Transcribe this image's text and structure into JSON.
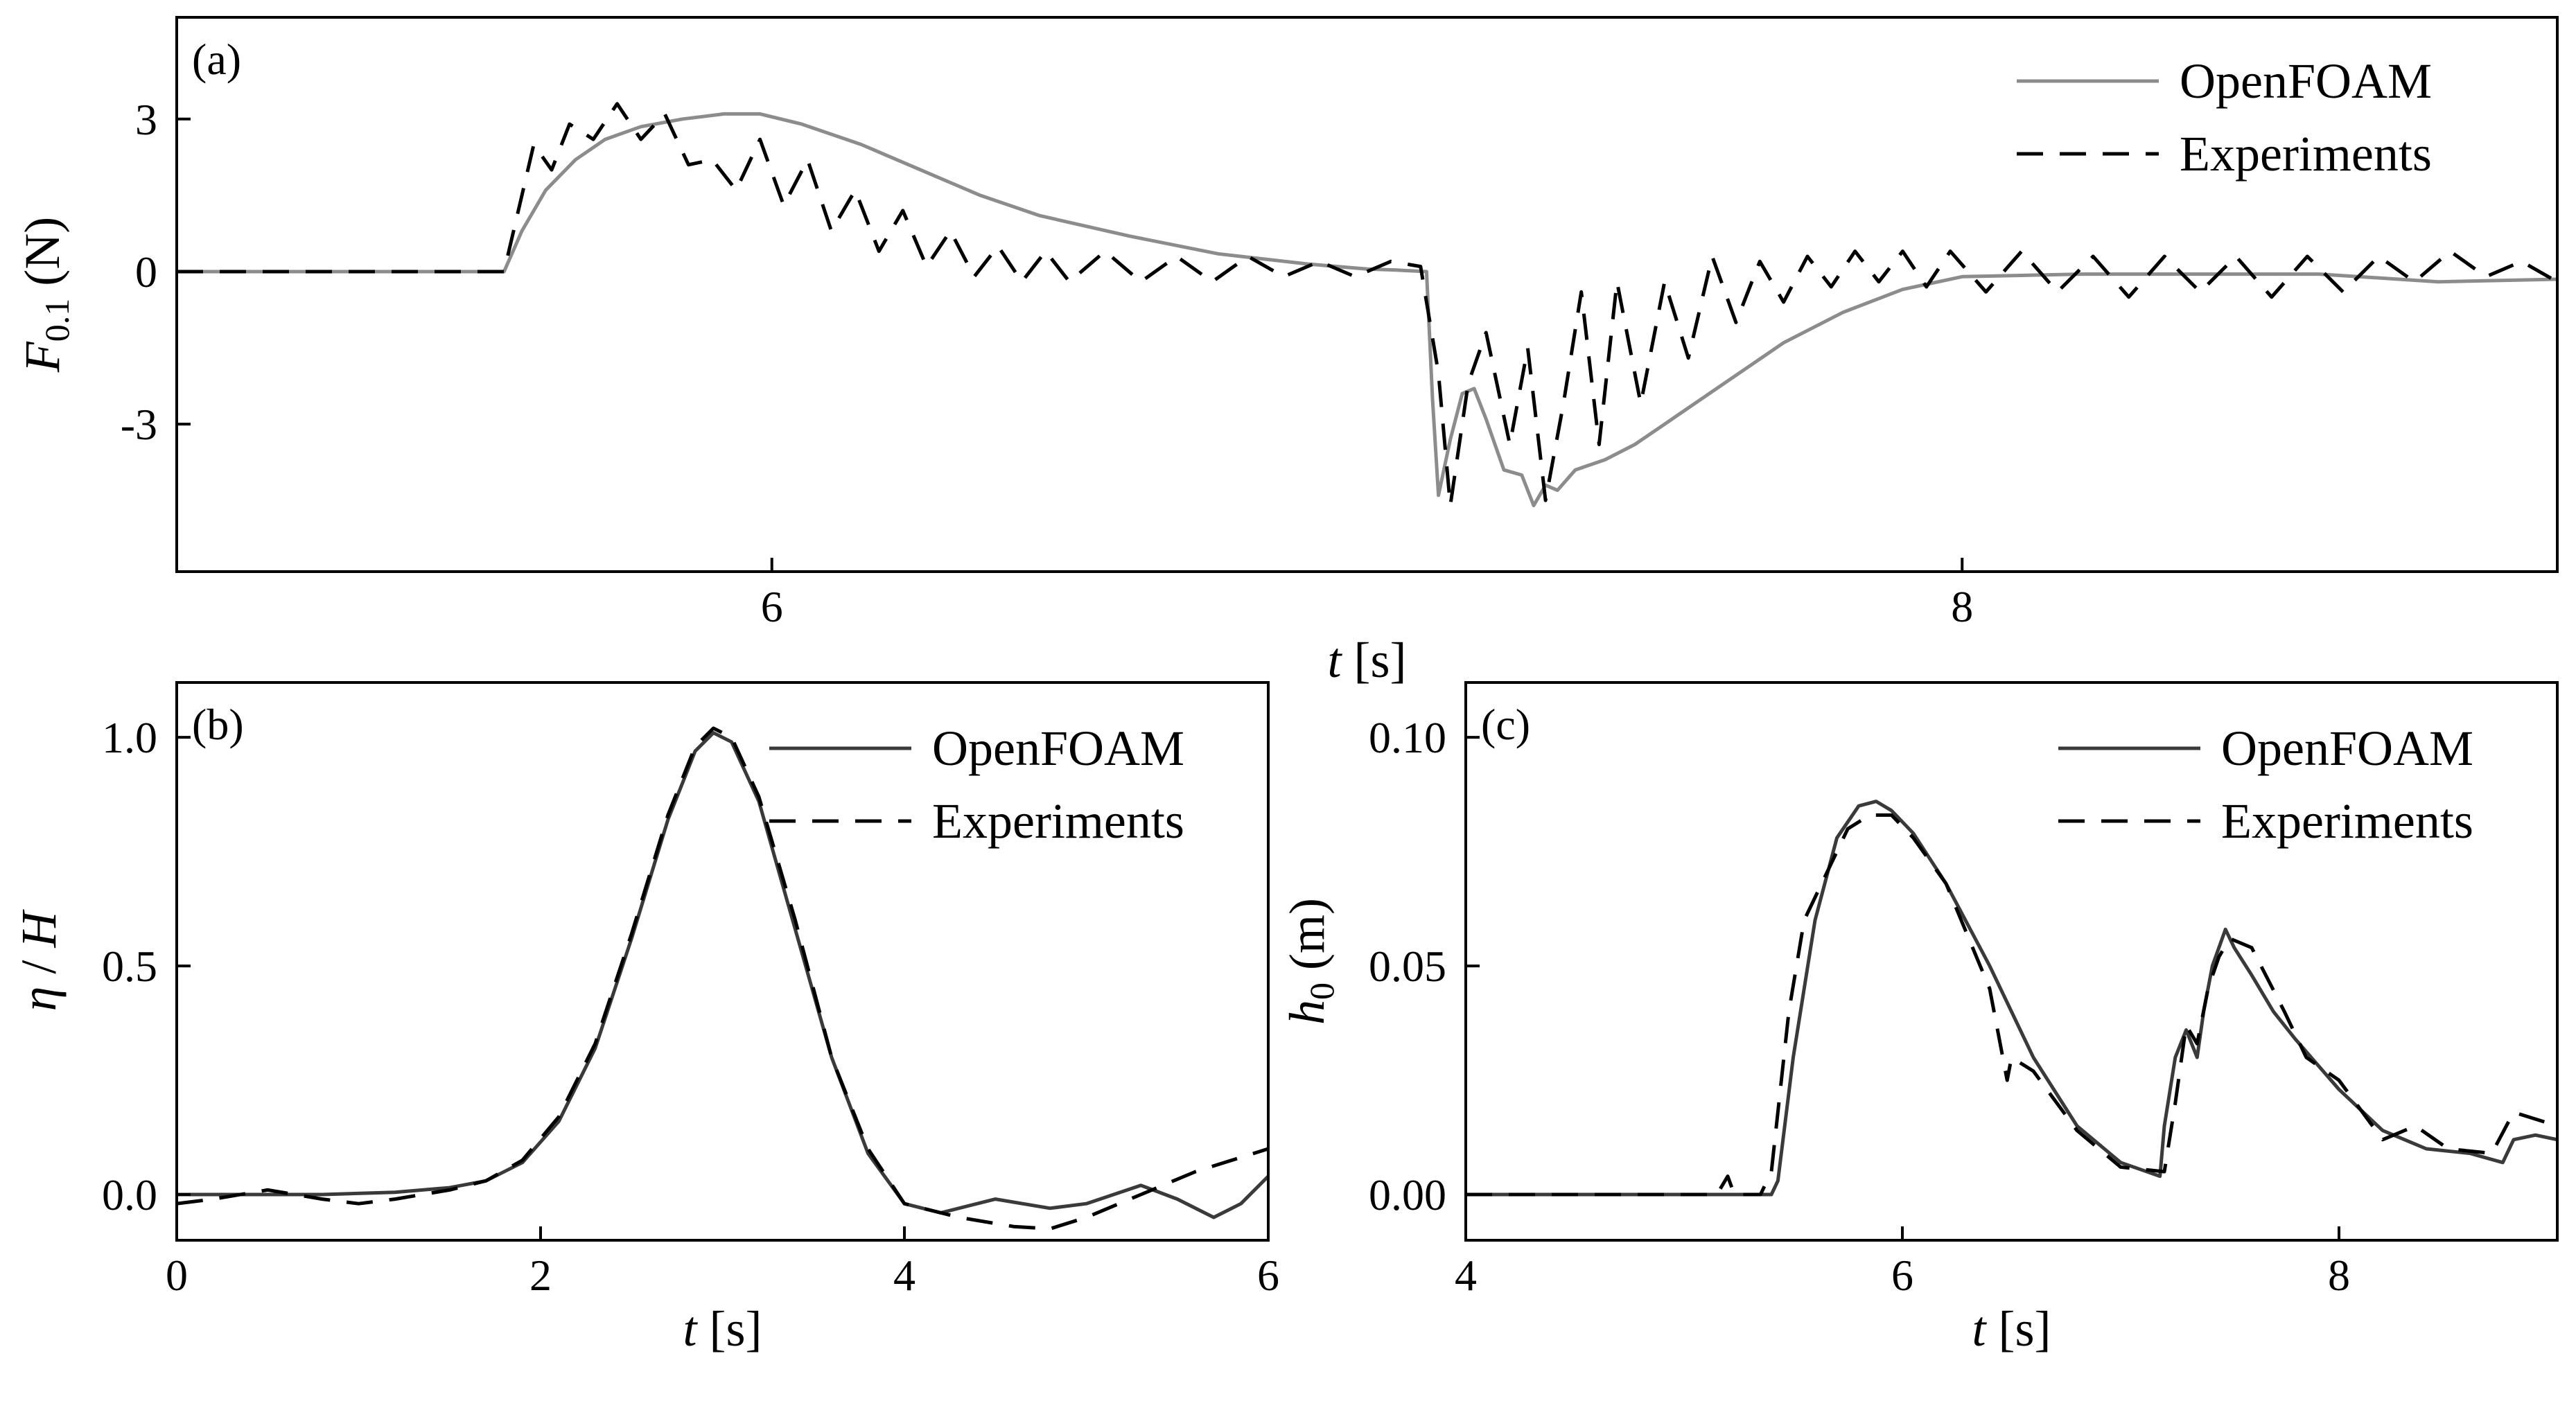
{
  "colors": {
    "openfoam_a": "#8c8c8c",
    "openfoam_bc": "#3a3a3a",
    "experiments": "#000000"
  },
  "chart_data": [
    {
      "panel": "(a)",
      "type": "line",
      "xlabel": {
        "var": "t",
        "unit": "[s]"
      },
      "ylabel": {
        "var": "F",
        "sub": "0.1",
        "unit": "(N)"
      },
      "xlim": [
        5.0,
        9.0
      ],
      "ylim": [
        -5.9,
        5.0
      ],
      "xticks": [
        6,
        8
      ],
      "xtick_labels": [
        "6",
        "8"
      ],
      "yticks": [
        3,
        0,
        -3
      ],
      "ytick_labels": [
        "3",
        "0",
        "-3"
      ],
      "legend": {
        "position": "top-right",
        "entries": [
          "OpenFOAM",
          "Experiments"
        ]
      },
      "series": [
        {
          "name": "OpenFOAM",
          "style": "solid",
          "color": "#8c8c8c",
          "x": [
            5.0,
            5.55,
            5.58,
            5.62,
            5.67,
            5.72,
            5.78,
            5.85,
            5.92,
            5.98,
            6.05,
            6.15,
            6.25,
            6.35,
            6.45,
            6.6,
            6.75,
            6.9,
            7.0,
            7.05,
            7.1,
            7.11,
            7.12,
            7.14,
            7.16,
            7.18,
            7.2,
            7.23,
            7.26,
            7.28,
            7.3,
            7.32,
            7.35,
            7.4,
            7.45,
            7.5,
            7.6,
            7.7,
            7.8,
            7.9,
            8.0,
            8.2,
            8.4,
            8.6,
            8.8,
            9.0
          ],
          "y": [
            0,
            0,
            0.8,
            1.6,
            2.2,
            2.6,
            2.85,
            3.0,
            3.1,
            3.1,
            2.9,
            2.5,
            2.0,
            1.5,
            1.1,
            0.7,
            0.35,
            0.15,
            0.05,
            0.03,
            0,
            -2.5,
            -4.4,
            -3.3,
            -2.4,
            -2.3,
            -2.9,
            -3.9,
            -4.0,
            -4.6,
            -4.2,
            -4.3,
            -3.9,
            -3.7,
            -3.4,
            -3.0,
            -2.2,
            -1.4,
            -0.8,
            -0.35,
            -0.1,
            -0.05,
            -0.05,
            -0.05,
            -0.2,
            -0.15
          ]
        },
        {
          "name": "Experiments",
          "style": "dashed",
          "color": "#000000",
          "x": [
            5.0,
            5.55,
            5.58,
            5.6,
            5.63,
            5.66,
            5.7,
            5.74,
            5.78,
            5.82,
            5.86,
            5.9,
            5.94,
            5.98,
            6.02,
            6.06,
            6.1,
            6.14,
            6.18,
            6.22,
            6.26,
            6.3,
            6.34,
            6.38,
            6.42,
            6.46,
            6.5,
            6.56,
            6.62,
            6.68,
            6.74,
            6.8,
            6.86,
            6.92,
            6.98,
            7.04,
            7.09,
            7.12,
            7.14,
            7.17,
            7.2,
            7.24,
            7.27,
            7.3,
            7.33,
            7.36,
            7.39,
            7.42,
            7.46,
            7.5,
            7.54,
            7.58,
            7.62,
            7.66,
            7.7,
            7.74,
            7.78,
            7.82,
            7.86,
            7.9,
            7.94,
            7.98,
            8.04,
            8.1,
            8.16,
            8.22,
            8.28,
            8.34,
            8.4,
            8.46,
            8.52,
            8.58,
            8.64,
            8.7,
            8.76,
            8.82,
            8.88,
            8.94,
            9.0
          ],
          "y": [
            0,
            0,
            1.5,
            2.5,
            2.0,
            2.9,
            2.6,
            3.3,
            2.6,
            3.1,
            2.1,
            2.2,
            1.6,
            2.6,
            1.3,
            2.2,
            0.8,
            1.6,
            0.4,
            1.2,
            0.1,
            0.8,
            -0.1,
            0.5,
            -0.2,
            0.4,
            -0.2,
            0.4,
            -0.2,
            0.3,
            -0.2,
            0.3,
            -0.1,
            0.2,
            -0.1,
            0.2,
            0.1,
            -2.0,
            -4.6,
            -2.2,
            -1.2,
            -3.4,
            -1.5,
            -4.5,
            -2.6,
            -0.4,
            -3.4,
            -0.2,
            -2.6,
            -0.2,
            -1.7,
            0.3,
            -1.0,
            0.2,
            -0.6,
            0.3,
            -0.3,
            0.4,
            -0.2,
            0.4,
            -0.3,
            0.4,
            -0.4,
            0.4,
            -0.4,
            0.3,
            -0.5,
            0.3,
            -0.4,
            0.3,
            -0.5,
            0.3,
            -0.4,
            0.3,
            -0.2,
            0.4,
            -0.1,
            0.2,
            -0.2
          ]
        }
      ]
    },
    {
      "panel": "(b)",
      "type": "line",
      "xlabel": {
        "var": "t",
        "unit": "[s]"
      },
      "ylabel": {
        "var": "η",
        "sep": " / ",
        "var2": "H"
      },
      "xlim": [
        0,
        6
      ],
      "ylim": [
        -0.1,
        1.12
      ],
      "xticks": [
        0,
        2,
        4,
        6
      ],
      "xtick_labels": [
        "0",
        "2",
        "4",
        "6"
      ],
      "yticks": [
        0.0,
        0.5,
        1.0
      ],
      "ytick_labels": [
        "0.0",
        "0.5",
        "1.0"
      ],
      "legend": {
        "position": "top-right",
        "entries": [
          "OpenFOAM",
          "Experiments"
        ]
      },
      "series": [
        {
          "name": "OpenFOAM",
          "style": "solid",
          "color": "#3a3a3a",
          "x": [
            0,
            0.4,
            0.8,
            1.2,
            1.5,
            1.7,
            1.9,
            2.1,
            2.3,
            2.5,
            2.7,
            2.85,
            2.95,
            3.05,
            3.2,
            3.4,
            3.6,
            3.8,
            4.0,
            4.2,
            4.5,
            4.8,
            5.0,
            5.3,
            5.5,
            5.7,
            5.85,
            6.0
          ],
          "y": [
            0,
            0,
            0,
            0.005,
            0.015,
            0.03,
            0.07,
            0.16,
            0.32,
            0.56,
            0.82,
            0.97,
            1.01,
            0.99,
            0.86,
            0.58,
            0.3,
            0.09,
            -0.02,
            -0.04,
            -0.01,
            -0.03,
            -0.02,
            0.02,
            -0.01,
            -0.05,
            -0.02,
            0.04
          ]
        },
        {
          "name": "Experiments",
          "style": "dashed",
          "color": "#000000",
          "x": [
            0,
            0.2,
            0.5,
            0.8,
            1.0,
            1.2,
            1.5,
            1.7,
            1.9,
            2.1,
            2.3,
            2.5,
            2.7,
            2.85,
            2.95,
            3.05,
            3.2,
            3.4,
            3.6,
            3.8,
            4.0,
            4.3,
            4.6,
            4.8,
            5.0,
            5.3,
            5.6,
            6.0
          ],
          "y": [
            -0.02,
            -0.01,
            0.01,
            -0.01,
            -0.02,
            -0.01,
            0.01,
            0.03,
            0.075,
            0.17,
            0.33,
            0.57,
            0.83,
            0.98,
            1.02,
            1.0,
            0.87,
            0.6,
            0.3,
            0.1,
            -0.02,
            -0.05,
            -0.07,
            -0.075,
            -0.05,
            0.0,
            0.05,
            0.1
          ]
        }
      ]
    },
    {
      "panel": "(c)",
      "type": "line",
      "xlabel": {
        "var": "t",
        "unit": "[s]"
      },
      "ylabel": {
        "var": "h",
        "sub": "0",
        "unit": "(m)"
      },
      "xlim": [
        4,
        9
      ],
      "ylim": [
        -0.01,
        0.112
      ],
      "xticks": [
        4,
        6,
        8
      ],
      "xtick_labels": [
        "4",
        "6",
        "8"
      ],
      "yticks": [
        0.0,
        0.05,
        0.1
      ],
      "ytick_labels": [
        "0.00",
        "0.05",
        "0.10"
      ],
      "legend": {
        "position": "top-right",
        "entries": [
          "OpenFOAM",
          "Experiments"
        ]
      },
      "series": [
        {
          "name": "OpenFOAM",
          "style": "solid",
          "color": "#3a3a3a",
          "x": [
            4,
            5.0,
            5.4,
            5.43,
            5.5,
            5.6,
            5.7,
            5.8,
            5.88,
            5.95,
            6.05,
            6.2,
            6.4,
            6.6,
            6.8,
            7.0,
            7.18,
            7.2,
            7.25,
            7.3,
            7.35,
            7.38,
            7.42,
            7.48,
            7.52,
            7.6,
            7.7,
            7.8,
            8.0,
            8.2,
            8.4,
            8.6,
            8.75,
            8.8,
            8.9,
            9.0
          ],
          "y": [
            0,
            0,
            0,
            0.003,
            0.03,
            0.06,
            0.078,
            0.085,
            0.086,
            0.084,
            0.079,
            0.068,
            0.05,
            0.03,
            0.015,
            0.007,
            0.004,
            0.015,
            0.03,
            0.036,
            0.03,
            0.04,
            0.05,
            0.058,
            0.054,
            0.048,
            0.04,
            0.034,
            0.023,
            0.014,
            0.01,
            0.009,
            0.007,
            0.012,
            0.013,
            0.012
          ]
        },
        {
          "name": "Experiments",
          "style": "dashed",
          "color": "#000000",
          "x": [
            4,
            5.15,
            5.2,
            5.23,
            5.35,
            5.4,
            5.48,
            5.55,
            5.65,
            5.75,
            5.85,
            5.95,
            6.05,
            6.2,
            6.4,
            6.48,
            6.5,
            6.6,
            6.8,
            7.0,
            7.2,
            7.25,
            7.3,
            7.35,
            7.4,
            7.45,
            7.5,
            7.6,
            7.75,
            7.85,
            8.0,
            8.2,
            8.35,
            8.5,
            8.7,
            8.8,
            9.0
          ],
          "y": [
            0,
            0,
            0.004,
            0,
            0,
            0.005,
            0.04,
            0.06,
            0.07,
            0.08,
            0.083,
            0.083,
            0.078,
            0.068,
            0.045,
            0.025,
            0.03,
            0.027,
            0.014,
            0.006,
            0.005,
            0.02,
            0.037,
            0.033,
            0.045,
            0.052,
            0.056,
            0.054,
            0.04,
            0.03,
            0.025,
            0.012,
            0.015,
            0.01,
            0.009,
            0.018,
            0.015
          ]
        }
      ]
    }
  ]
}
